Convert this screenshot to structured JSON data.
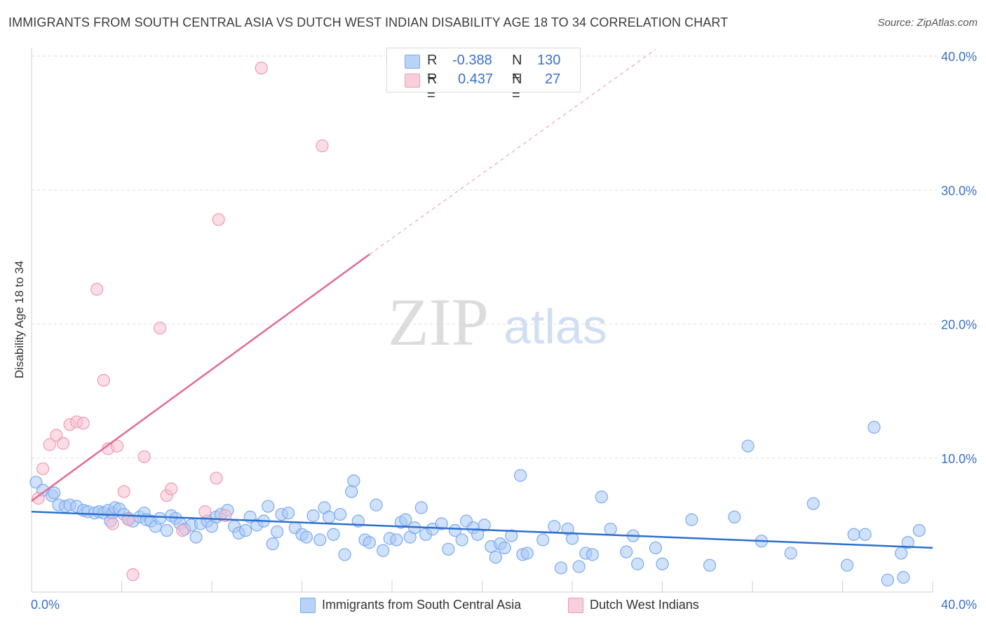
{
  "title": "IMMIGRANTS FROM SOUTH CENTRAL ASIA VS DUTCH WEST INDIAN DISABILITY AGE 18 TO 34 CORRELATION CHART",
  "source": "Source: ZipAtlas.com",
  "watermark": {
    "zip": "ZIP",
    "atlas": "atlas"
  },
  "legend_stats": [
    {
      "r_label": "R =",
      "r_value": "-0.388",
      "n_label": "N =",
      "n_value": "130"
    },
    {
      "r_label": "R =",
      "r_value": "0.437",
      "n_label": "N =",
      "n_value": "27"
    }
  ],
  "chart_data": {
    "type": "scatter",
    "title": "IMMIGRANTS FROM SOUTH CENTRAL ASIA VS DUTCH WEST INDIAN DISABILITY AGE 18 TO 34 CORRELATION CHART",
    "xlabel": "",
    "ylabel": "Disability Age 18 to 34",
    "xlim": [
      0,
      40
    ],
    "ylim": [
      0,
      40
    ],
    "x_tick_labels": [
      "0.0%",
      "40.0%"
    ],
    "y_tick_labels": [
      "10.0%",
      "20.0%",
      "30.0%",
      "40.0%"
    ],
    "y_ticks": [
      10,
      20,
      30,
      40
    ],
    "grid": true,
    "legend_position": "bottom",
    "series": [
      {
        "name": "Immigrants from South Central Asia",
        "color": "#7baaf0",
        "fill": "#a9c8f5",
        "trend": {
          "x": [
            0,
            40
          ],
          "y": [
            6.0,
            3.3
          ]
        },
        "points": [
          [
            0.2,
            8.2
          ],
          [
            0.5,
            7.6
          ],
          [
            0.9,
            7.2
          ],
          [
            1.0,
            7.4
          ],
          [
            1.2,
            6.5
          ],
          [
            1.5,
            6.4
          ],
          [
            1.7,
            6.5
          ],
          [
            2.0,
            6.4
          ],
          [
            2.3,
            6.1
          ],
          [
            2.5,
            6.0
          ],
          [
            2.8,
            5.9
          ],
          [
            3.0,
            6.0
          ],
          [
            3.2,
            5.9
          ],
          [
            3.4,
            6.1
          ],
          [
            3.5,
            5.3
          ],
          [
            3.6,
            5.9
          ],
          [
            3.7,
            6.3
          ],
          [
            3.9,
            6.2
          ],
          [
            4.1,
            5.8
          ],
          [
            4.3,
            5.5
          ],
          [
            4.5,
            5.3
          ],
          [
            4.8,
            5.6
          ],
          [
            5.0,
            5.9
          ],
          [
            5.1,
            5.4
          ],
          [
            5.3,
            5.3
          ],
          [
            5.5,
            4.9
          ],
          [
            5.7,
            5.5
          ],
          [
            6.0,
            4.6
          ],
          [
            6.2,
            5.7
          ],
          [
            6.4,
            5.5
          ],
          [
            6.6,
            5.1
          ],
          [
            6.8,
            4.7
          ],
          [
            7.1,
            5.0
          ],
          [
            7.3,
            4.1
          ],
          [
            7.5,
            5.1
          ],
          [
            7.8,
            5.3
          ],
          [
            8.0,
            4.9
          ],
          [
            8.2,
            5.6
          ],
          [
            8.4,
            5.8
          ],
          [
            8.7,
            6.1
          ],
          [
            9.0,
            4.9
          ],
          [
            9.2,
            4.4
          ],
          [
            9.5,
            4.6
          ],
          [
            9.7,
            5.6
          ],
          [
            10.0,
            5.0
          ],
          [
            10.3,
            5.3
          ],
          [
            10.5,
            6.4
          ],
          [
            10.7,
            3.6
          ],
          [
            10.9,
            4.5
          ],
          [
            11.1,
            5.8
          ],
          [
            11.4,
            5.9
          ],
          [
            11.7,
            4.8
          ],
          [
            12.0,
            4.3
          ],
          [
            12.2,
            4.1
          ],
          [
            12.5,
            5.7
          ],
          [
            12.8,
            3.9
          ],
          [
            13.0,
            6.3
          ],
          [
            13.2,
            5.6
          ],
          [
            13.4,
            4.3
          ],
          [
            13.7,
            5.8
          ],
          [
            13.9,
            2.8
          ],
          [
            14.2,
            7.5
          ],
          [
            14.3,
            8.3
          ],
          [
            14.5,
            5.3
          ],
          [
            14.8,
            3.9
          ],
          [
            15.0,
            3.7
          ],
          [
            15.3,
            6.5
          ],
          [
            15.6,
            3.1
          ],
          [
            15.9,
            4.0
          ],
          [
            16.2,
            3.9
          ],
          [
            16.4,
            5.2
          ],
          [
            16.6,
            5.4
          ],
          [
            16.8,
            4.1
          ],
          [
            17.0,
            4.8
          ],
          [
            17.3,
            6.3
          ],
          [
            17.5,
            4.3
          ],
          [
            17.8,
            4.7
          ],
          [
            18.2,
            5.1
          ],
          [
            18.5,
            3.2
          ],
          [
            18.8,
            4.6
          ],
          [
            19.1,
            3.9
          ],
          [
            19.3,
            5.3
          ],
          [
            19.6,
            4.8
          ],
          [
            19.8,
            4.3
          ],
          [
            20.1,
            5.0
          ],
          [
            20.4,
            3.4
          ],
          [
            20.6,
            2.6
          ],
          [
            20.8,
            3.6
          ],
          [
            21.0,
            3.3
          ],
          [
            21.3,
            4.2
          ],
          [
            21.7,
            8.7
          ],
          [
            21.8,
            2.8
          ],
          [
            22.0,
            2.9
          ],
          [
            22.7,
            3.9
          ],
          [
            23.2,
            4.9
          ],
          [
            23.5,
            1.8
          ],
          [
            23.8,
            4.7
          ],
          [
            24.0,
            4.0
          ],
          [
            24.3,
            1.9
          ],
          [
            24.6,
            2.9
          ],
          [
            24.9,
            2.8
          ],
          [
            25.3,
            7.1
          ],
          [
            25.7,
            4.7
          ],
          [
            26.4,
            3.0
          ],
          [
            26.7,
            4.2
          ],
          [
            26.9,
            2.1
          ],
          [
            27.7,
            3.3
          ],
          [
            28.0,
            2.1
          ],
          [
            29.3,
            5.4
          ],
          [
            30.1,
            2.0
          ],
          [
            31.2,
            5.6
          ],
          [
            31.8,
            10.9
          ],
          [
            32.4,
            3.8
          ],
          [
            33.7,
            2.9
          ],
          [
            34.7,
            6.6
          ],
          [
            36.2,
            2.0
          ],
          [
            36.5,
            4.3
          ],
          [
            37.0,
            4.3
          ],
          [
            37.4,
            12.3
          ],
          [
            38.0,
            0.9
          ],
          [
            38.6,
            2.9
          ],
          [
            38.7,
            1.1
          ],
          [
            38.9,
            3.7
          ],
          [
            39.4,
            4.6
          ]
        ]
      },
      {
        "name": "Dutch West Indians",
        "color": "#ef9ab5",
        "fill": "#f7c1d1",
        "trend": {
          "x": [
            0,
            15
          ],
          "y": [
            6.8,
            25.2
          ]
        },
        "trend_dashed": {
          "x": [
            15,
            27.7
          ],
          "y": [
            25.2,
            40.5
          ]
        },
        "points": [
          [
            0.3,
            7.0
          ],
          [
            0.5,
            9.2
          ],
          [
            0.8,
            11.0
          ],
          [
            1.1,
            11.7
          ],
          [
            1.4,
            11.1
          ],
          [
            1.7,
            12.5
          ],
          [
            2.0,
            12.7
          ],
          [
            2.3,
            12.6
          ],
          [
            2.9,
            22.6
          ],
          [
            3.2,
            15.8
          ],
          [
            3.4,
            10.7
          ],
          [
            3.6,
            5.1
          ],
          [
            3.8,
            10.9
          ],
          [
            4.1,
            7.5
          ],
          [
            4.5,
            1.3
          ],
          [
            5.0,
            10.1
          ],
          [
            5.7,
            19.7
          ],
          [
            6.0,
            7.2
          ],
          [
            6.2,
            7.7
          ],
          [
            6.7,
            4.6
          ],
          [
            7.7,
            6.0
          ],
          [
            8.2,
            8.5
          ],
          [
            8.3,
            27.8
          ],
          [
            8.6,
            5.7
          ],
          [
            10.2,
            39.1
          ],
          [
            12.9,
            33.3
          ],
          [
            4.3,
            5.4
          ]
        ]
      }
    ]
  }
}
